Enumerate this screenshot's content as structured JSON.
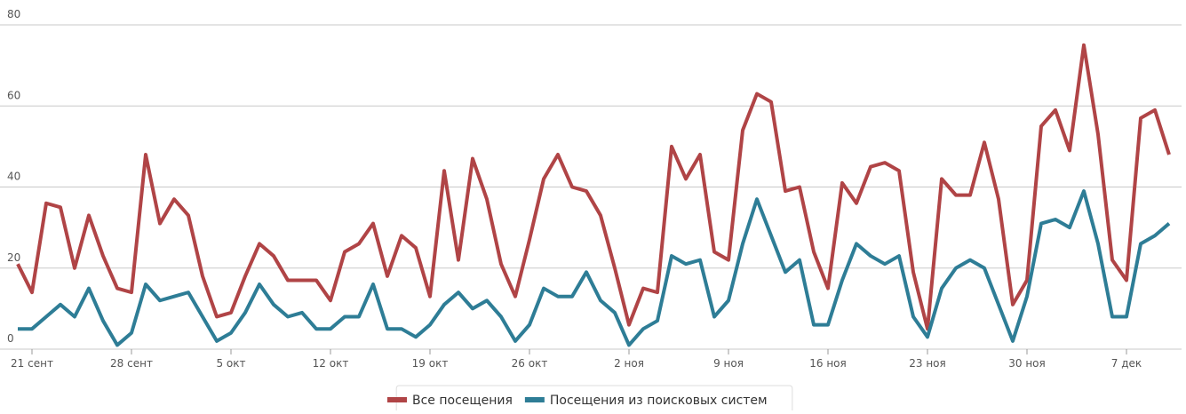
{
  "chart_data": {
    "type": "line",
    "categories": [
      null,
      "21 сент",
      null,
      null,
      null,
      null,
      null,
      null,
      "28 сент",
      null,
      null,
      null,
      null,
      null,
      null,
      "5 окт",
      null,
      null,
      null,
      null,
      null,
      null,
      "12 окт",
      null,
      null,
      null,
      null,
      null,
      null,
      "19 окт",
      null,
      null,
      null,
      null,
      null,
      null,
      "26 окт",
      null,
      null,
      null,
      null,
      null,
      null,
      "2 ноя",
      null,
      null,
      null,
      null,
      null,
      null,
      "9 ноя",
      null,
      null,
      null,
      null,
      null,
      null,
      "16 ноя",
      null,
      null,
      null,
      null,
      null,
      null,
      "23 ноя",
      null,
      null,
      null,
      null,
      null,
      null,
      "30 ноя",
      null,
      null,
      null,
      null,
      null,
      null,
      "7 дек",
      null,
      null,
      null
    ],
    "series": [
      {
        "name": "Все посещения",
        "color": "#b04446",
        "values": [
          21,
          14,
          36,
          35,
          20,
          33,
          23,
          15,
          14,
          48,
          31,
          37,
          33,
          18,
          8,
          9,
          18,
          26,
          23,
          17,
          17,
          17,
          12,
          24,
          26,
          31,
          18,
          28,
          25,
          13,
          44,
          22,
          47,
          37,
          21,
          13,
          27,
          42,
          48,
          40,
          39,
          33,
          20,
          6,
          15,
          14,
          50,
          42,
          48,
          24,
          22,
          54,
          63,
          61,
          39,
          40,
          24,
          15,
          41,
          36,
          45,
          46,
          44,
          19,
          5,
          42,
          38,
          38,
          51,
          37,
          11,
          17,
          55,
          59,
          49,
          75,
          53,
          22,
          17,
          57,
          59,
          48
        ]
      },
      {
        "name": "Посещения из поисковых систем",
        "color": "#2e7d96",
        "values": [
          5,
          5,
          8,
          11,
          8,
          15,
          7,
          1,
          4,
          16,
          12,
          13,
          14,
          8,
          2,
          4,
          9,
          16,
          11,
          8,
          9,
          5,
          5,
          8,
          8,
          16,
          5,
          5,
          3,
          6,
          11,
          14,
          10,
          12,
          8,
          2,
          6,
          15,
          13,
          13,
          19,
          12,
          9,
          1,
          5,
          7,
          23,
          21,
          22,
          8,
          12,
          26,
          37,
          28,
          19,
          22,
          6,
          6,
          17,
          26,
          23,
          21,
          23,
          8,
          3,
          15,
          20,
          22,
          20,
          11,
          2,
          13,
          31,
          32,
          30,
          39,
          26,
          8,
          8,
          26,
          28,
          31
        ]
      }
    ],
    "ylim": [
      0,
      80
    ],
    "yticks": [
      0,
      20,
      40,
      60,
      80
    ],
    "grid": true,
    "legend": "bottom"
  }
}
